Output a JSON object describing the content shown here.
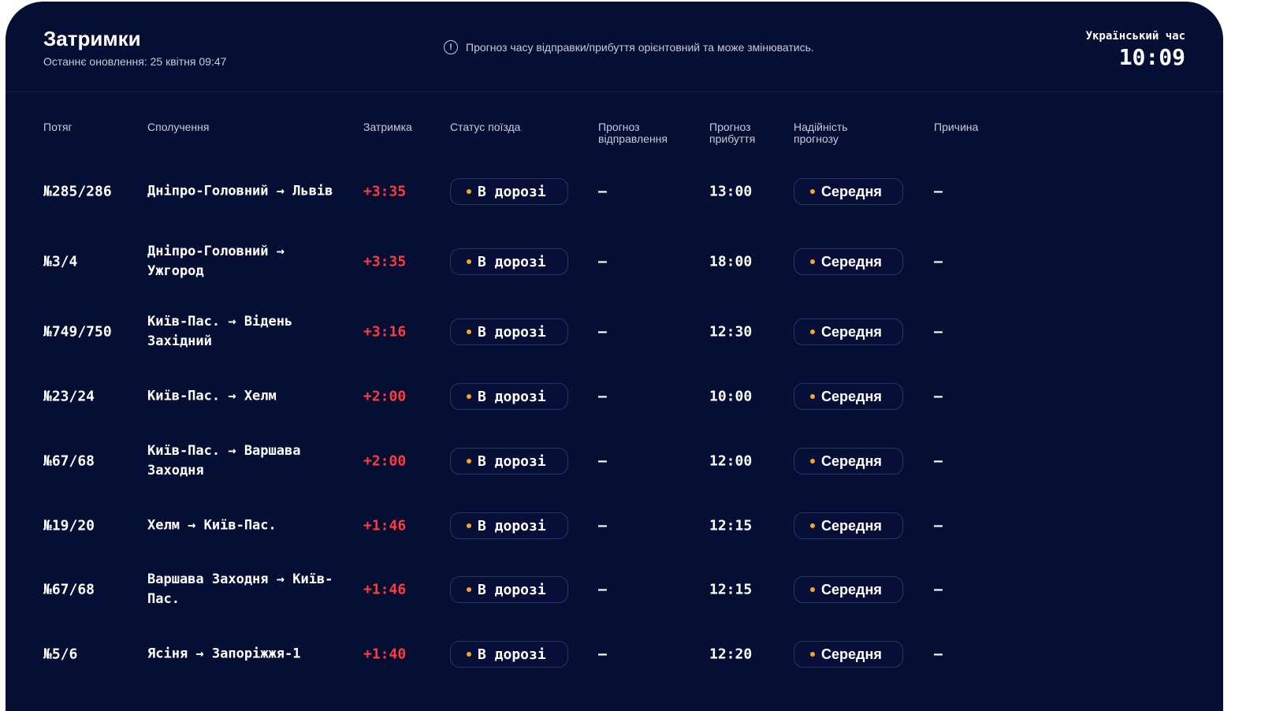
{
  "header": {
    "title": "Затримки",
    "last_update": "Останнє оновлення: 25 квітня 09:47",
    "notice": "Прогноз часу відправки/прибуття орієнтовний та може змінюватись.",
    "notice_icon": "info-circle-icon",
    "clock_label": "Український час",
    "clock_time": "10:09"
  },
  "columns": [
    "Потяг",
    "Сполучення",
    "Затримка",
    "Статус поїзда",
    "Прогноз відправлення",
    "Прогноз прибуття",
    "Надійність прогнозу",
    "Причина"
  ],
  "colors": {
    "background": "#050e33",
    "delay": "#ff3b3b",
    "dot": "#f5a623"
  },
  "rows": [
    {
      "train": "№285/286",
      "route": "Дніпро-Головний → Львів",
      "delay": "+3:35",
      "status": "В дорозі",
      "dep": "—",
      "arr": "13:00",
      "rel": "Середня",
      "reason": "—"
    },
    {
      "train": "№3/4",
      "route": "Дніпро-Головний → Ужгород",
      "delay": "+3:35",
      "status": "В дорозі",
      "dep": "—",
      "arr": "18:00",
      "rel": "Середня",
      "reason": "—"
    },
    {
      "train": "№749/750",
      "route": "Київ-Пас. → Відень Західний",
      "delay": "+3:16",
      "status": "В дорозі",
      "dep": "—",
      "arr": "12:30",
      "rel": "Середня",
      "reason": "—"
    },
    {
      "train": "№23/24",
      "route": "Київ-Пас. → Хелм",
      "delay": "+2:00",
      "status": "В дорозі",
      "dep": "—",
      "arr": "10:00",
      "rel": "Середня",
      "reason": "—"
    },
    {
      "train": "№67/68",
      "route": "Київ-Пас. → Варшава Заходня",
      "delay": "+2:00",
      "status": "В дорозі",
      "dep": "—",
      "arr": "12:00",
      "rel": "Середня",
      "reason": "—"
    },
    {
      "train": "№19/20",
      "route": "Хелм → Київ-Пас.",
      "delay": "+1:46",
      "status": "В дорозі",
      "dep": "—",
      "arr": "12:15",
      "rel": "Середня",
      "reason": "—"
    },
    {
      "train": "№67/68",
      "route": "Варшава Заходня → Київ-Пас.",
      "delay": "+1:46",
      "status": "В дорозі",
      "dep": "—",
      "arr": "12:15",
      "rel": "Середня",
      "reason": "—"
    },
    {
      "train": "№5/6",
      "route": "Ясіня → Запоріжжя-1",
      "delay": "+1:40",
      "status": "В дорозі",
      "dep": "—",
      "arr": "12:20",
      "rel": "Середня",
      "reason": "—"
    }
  ]
}
